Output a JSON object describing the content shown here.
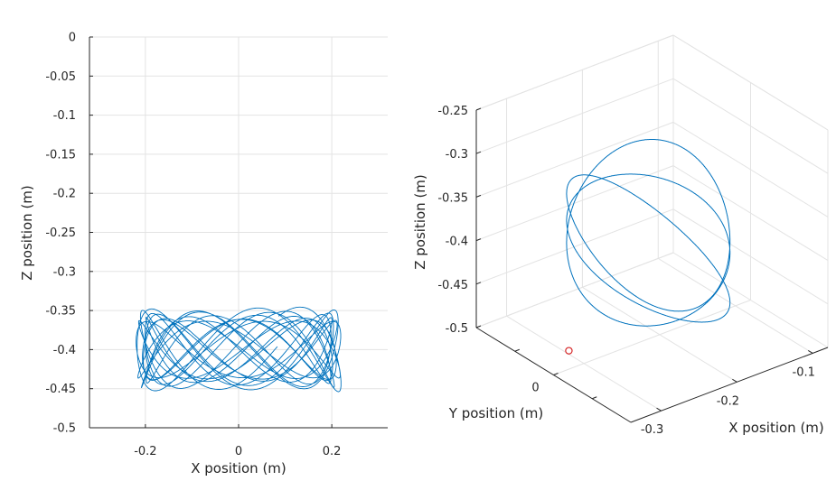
{
  "chart_data": [
    {
      "type": "line",
      "xlabel": "X position (m)",
      "ylabel": "Z position (m)",
      "xlim": [
        -0.32,
        0.32
      ],
      "ylim": [
        -0.5,
        0
      ],
      "xticks": [
        -0.2,
        0,
        0.2
      ],
      "xtick_labels": [
        "-0.2",
        "0",
        "0.2"
      ],
      "yticks": [
        0,
        -0.05,
        -0.1,
        -0.15,
        -0.2,
        -0.25,
        -0.3,
        -0.35,
        -0.4,
        -0.45,
        -0.5
      ],
      "ytick_labels": [
        "0",
        "-0.05",
        "-0.1",
        "-0.15",
        "-0.2",
        "-0.25",
        "-0.3",
        "-0.35",
        "-0.4",
        "-0.45",
        "-0.5"
      ],
      "grid": true,
      "series_color": "#0072BD",
      "curve": {
        "x_center": 0.0,
        "x_amplitude": 0.22,
        "z_center": -0.4,
        "z_amplitude": 0.048,
        "x_frequency": 3,
        "z_frequency": 8.2,
        "periods": 14
      }
    },
    {
      "type": "line3d",
      "xlabel": "X position (m)",
      "ylabel": "Y position (m)",
      "zlabel": "Z position (m)",
      "xlim": [
        -0.34,
        -0.08
      ],
      "ylim": [
        -0.2,
        0.2
      ],
      "zlim": [
        -0.5,
        -0.25
      ],
      "xticks": [
        -0.3,
        -0.2,
        -0.1
      ],
      "xtick_labels": [
        "-0.3",
        "-0.2",
        "-0.1"
      ],
      "yticks": [
        0
      ],
      "ytick_labels": [
        "0"
      ],
      "zticks": [
        -0.25,
        -0.3,
        -0.35,
        -0.4,
        -0.45,
        -0.5
      ],
      "ztick_labels": [
        "-0.25",
        "-0.3",
        "-0.35",
        "-0.4",
        "-0.45",
        "-0.5"
      ],
      "grid": true,
      "series_color": "#0072BD",
      "marker_color": "#D62728",
      "marker": {
        "x": -0.33,
        "y": -0.02,
        "z": -0.47
      }
    }
  ]
}
